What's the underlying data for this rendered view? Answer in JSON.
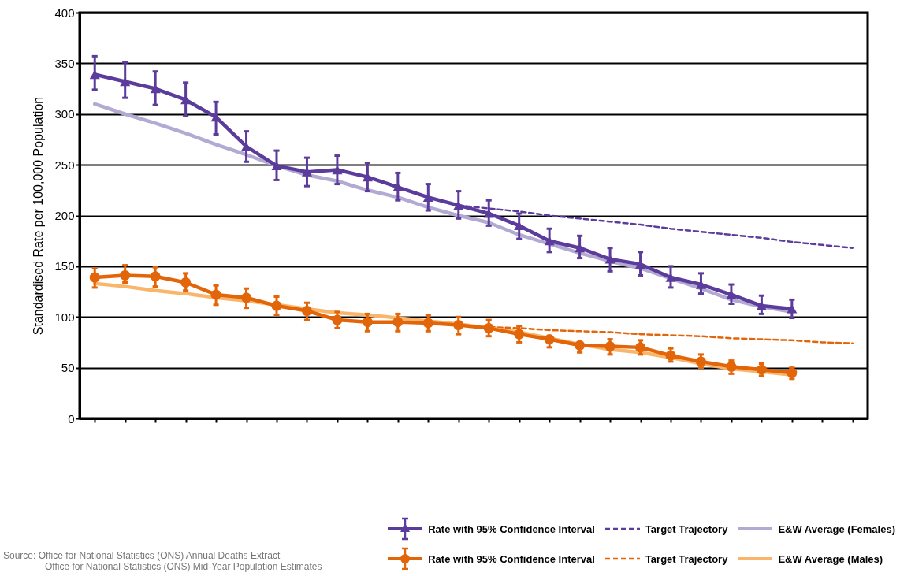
{
  "chart_data": {
    "type": "line",
    "ylabel": "Standardised Rate per 100,000 Population",
    "categories": [
      null,
      null,
      null,
      null,
      null,
      null,
      null,
      null,
      null,
      null,
      null,
      null,
      null,
      null,
      null,
      null,
      null,
      null,
      null,
      null,
      null,
      null,
      null,
      null,
      null,
      null
    ],
    "series": [
      {
        "name": "Rate with 95% Confidence Interval",
        "color": "#5b3c9c",
        "marker": "triangle",
        "line_style": "solid",
        "values": [
          339,
          332,
          325,
          314,
          297,
          268,
          249,
          243,
          245,
          238,
          228,
          218,
          210,
          202,
          190,
          175,
          168,
          157,
          152,
          139,
          132,
          122,
          111,
          108,
          null,
          null
        ],
        "errors": [
          [
            324,
            357
          ],
          [
            316,
            351
          ],
          [
            309,
            342
          ],
          [
            298,
            331
          ],
          [
            280,
            312
          ],
          [
            253,
            283
          ],
          [
            235,
            264
          ],
          [
            229,
            257
          ],
          [
            231,
            259
          ],
          [
            224,
            252
          ],
          [
            215,
            242
          ],
          [
            205,
            231
          ],
          [
            197,
            224
          ],
          [
            190,
            215
          ],
          [
            177,
            202
          ],
          [
            164,
            187
          ],
          [
            158,
            180
          ],
          [
            145,
            168
          ],
          [
            141,
            164
          ],
          [
            129,
            150
          ],
          [
            123,
            143
          ],
          [
            113,
            132
          ],
          [
            103,
            121
          ],
          [
            99,
            117
          ],
          null,
          null
        ]
      },
      {
        "name": "Target Trajectory",
        "color": "#5b3c9c",
        "marker": "none",
        "line_style": "dashed",
        "values": [
          null,
          null,
          null,
          null,
          null,
          null,
          null,
          null,
          null,
          null,
          null,
          null,
          210,
          207,
          204,
          200,
          197,
          194,
          191,
          187,
          184,
          181,
          178,
          174,
          171,
          168
        ]
      },
      {
        "name": "E&W Average (Females)",
        "color": "#b3aad4",
        "marker": "none",
        "line_style": "solid",
        "values": [
          310,
          300,
          291,
          281,
          270,
          260,
          249,
          240,
          234,
          225,
          218,
          208,
          200,
          193,
          181,
          172,
          163,
          155,
          148,
          138,
          128,
          117,
          110,
          105,
          null,
          null
        ]
      },
      {
        "name": "Rate with 95% Confidence Interval",
        "color": "#e3650a",
        "marker": "circle",
        "line_style": "solid",
        "values": [
          139,
          141,
          140,
          134,
          122,
          119,
          111,
          106,
          97,
          95,
          95,
          94,
          92,
          89,
          83,
          78,
          72,
          71,
          70,
          62,
          56,
          51,
          48,
          45,
          null,
          null
        ],
        "errors": [
          [
            129,
            148
          ],
          [
            134,
            151
          ],
          [
            130,
            149
          ],
          [
            126,
            143
          ],
          [
            112,
            131
          ],
          [
            109,
            128
          ],
          [
            102,
            120
          ],
          [
            97,
            114
          ],
          [
            89,
            105
          ],
          [
            86,
            103
          ],
          [
            86,
            103
          ],
          [
            86,
            102
          ],
          [
            83,
            100
          ],
          [
            81,
            97
          ],
          [
            75,
            91
          ],
          [
            70,
            80
          ],
          [
            65,
            75
          ],
          [
            63,
            78
          ],
          [
            63,
            77
          ],
          [
            56,
            69
          ],
          [
            50,
            63
          ],
          [
            44,
            57
          ],
          [
            42,
            54
          ],
          [
            39,
            50
          ],
          null,
          null
        ]
      },
      {
        "name": "Target Trajectory",
        "color": "#e3650a",
        "marker": "none",
        "line_style": "dashed",
        "values": [
          null,
          null,
          null,
          null,
          null,
          null,
          null,
          null,
          null,
          null,
          null,
          null,
          92,
          90,
          89,
          87,
          86,
          85,
          83,
          82,
          81,
          79,
          78,
          77,
          75,
          74
        ]
      },
      {
        "name": "E&W Average (Males)",
        "color": "#f9b66a",
        "marker": "none",
        "line_style": "solid",
        "values": [
          133,
          130,
          126,
          123,
          119,
          116,
          112,
          108,
          104,
          102,
          99,
          96,
          93,
          89,
          85,
          79,
          73,
          68,
          65,
          60,
          54,
          49,
          46,
          43,
          null,
          null
        ]
      }
    ],
    "ylim": [
      0,
      400
    ],
    "yticks": [
      0,
      50,
      100,
      150,
      200,
      250,
      300,
      350,
      400
    ],
    "grid": "y",
    "tick_labels": "y",
    "legend": "bottom right",
    "annotations": [
      "Source:  Office for National Statistics (ONS) Annual Deaths Extract",
      "Office for National Statistics (ONS) Mid-Year Population Estimates"
    ]
  }
}
